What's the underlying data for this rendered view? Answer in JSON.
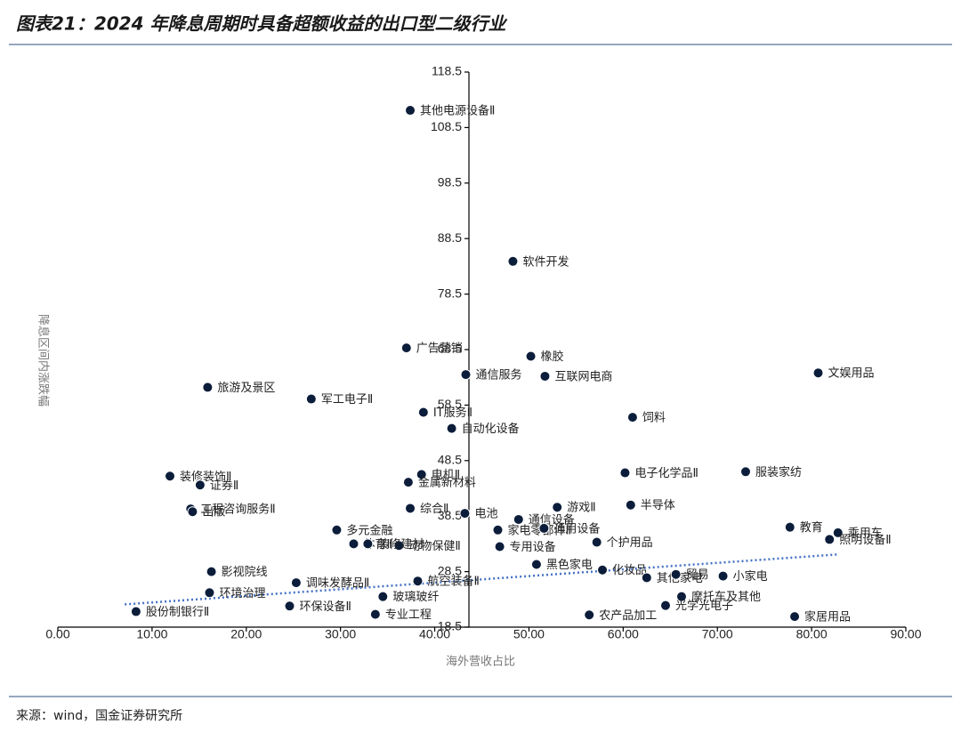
{
  "chart_data": {
    "type": "scatter",
    "title": "图表21：2024 年降息周期时具备超额收益的出口型二级行业",
    "source": "来源：wind，国金证券研究所",
    "x_label": "海外营收占比",
    "y_label": "降息区间内涨跌幅",
    "color": "#0b1d3a",
    "xlim": [
      0,
      90
    ],
    "xticks": [
      {
        "value": 0,
        "label": "0.00"
      },
      {
        "value": 10,
        "label": "10.00"
      },
      {
        "value": 20,
        "label": "20.00"
      },
      {
        "value": 30,
        "label": "30.00"
      },
      {
        "value": 40,
        "label": "40.00"
      },
      {
        "value": 50,
        "label": "50.00"
      },
      {
        "value": 60,
        "label": "60.00"
      },
      {
        "value": 70,
        "label": "70.00"
      },
      {
        "value": 80,
        "label": "80.00"
      },
      {
        "value": 90,
        "label": "90.00"
      }
    ],
    "ylim": [
      18.5,
      118.5
    ],
    "yticks": [
      18.5,
      28.5,
      38.5,
      48.5,
      58.5,
      68.5,
      78.5,
      88.5,
      98.5,
      108.5,
      118.5
    ],
    "labels": [
      "其他电源设备Ⅱ",
      "软件开发",
      "广告营销",
      "橡胶",
      "通信服务",
      "互联网电商",
      "文娱用品",
      "旅游及景区",
      "军工电子Ⅱ",
      "IT服务Ⅱ",
      "饲料",
      "自动化设备",
      "电机Ⅱ",
      "电子化学品Ⅱ",
      "服装家纺",
      "装修装饰Ⅱ",
      "证券Ⅱ",
      "金属新材料",
      "游戏Ⅱ",
      "半导体",
      "工程咨询服务Ⅱ",
      "出版",
      "综合Ⅱ",
      "电池",
      "通信设备",
      "多元金融",
      "家电零部件Ⅱ",
      "通用设备",
      "教育",
      "乘用车",
      "照明设备Ⅱ",
      "体育Ⅱ",
      "个护用品",
      "专用设备",
      "动物保健Ⅱ",
      "装修建材",
      "影视院线",
      "黑色家电",
      "化妆品",
      "其他家电",
      "小家电",
      "贸易",
      "调味发酵品Ⅱ",
      "航空装备Ⅱ",
      "环境治理",
      "玻璃玻纤",
      "摩托车及其他",
      "股份制银行Ⅱ",
      "环保设备Ⅱ",
      "专业工程",
      "家居用品",
      "农产品加工",
      "光学光电子"
    ],
    "x": [
      37.4,
      48.3,
      37.0,
      50.2,
      43.3,
      51.7,
      80.7,
      15.9,
      26.9,
      38.8,
      61.0,
      41.8,
      38.6,
      60.2,
      73.0,
      11.9,
      15.1,
      37.2,
      53.0,
      60.8,
      14.1,
      14.3,
      37.4,
      43.2,
      48.9,
      29.6,
      46.7,
      51.6,
      77.7,
      82.8,
      81.9,
      31.4,
      57.2,
      46.9,
      36.2,
      32.9,
      16.3,
      50.8,
      57.8,
      62.5,
      70.6,
      65.6,
      25.3,
      38.2,
      16.1,
      34.5,
      66.2,
      8.3,
      24.6,
      33.7,
      78.2,
      56.4,
      64.5
    ],
    "values": [
      111.6,
      84.4,
      68.8,
      67.3,
      64.0,
      63.7,
      64.3,
      61.7,
      59.6,
      57.2,
      56.3,
      54.3,
      46.0,
      46.3,
      46.5,
      45.7,
      44.1,
      44.6,
      40.1,
      40.5,
      39.8,
      39.3,
      39.9,
      39.0,
      37.9,
      36.0,
      36.0,
      36.3,
      36.5,
      35.5,
      34.3,
      33.5,
      33.8,
      33.0,
      33.2,
      33.5,
      28.5,
      29.8,
      28.8,
      27.4,
      27.7,
      28.0,
      26.5,
      26.8,
      24.7,
      24.0,
      24.0,
      21.3,
      22.3,
      20.8,
      20.4,
      20.7,
      22.4
    ],
    "trendline": {
      "color": "#4472c4",
      "x": [
        7.1,
        82.8
      ],
      "values": [
        22.6,
        31.6
      ]
    }
  }
}
